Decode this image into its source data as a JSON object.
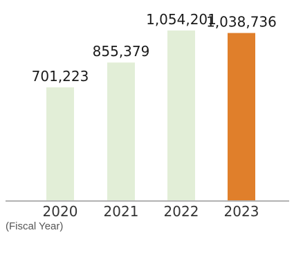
{
  "chart_data": {
    "type": "bar",
    "categories": [
      "2020",
      "2021",
      "2022",
      "2023"
    ],
    "values": [
      701223,
      855379,
      1054201,
      1038736
    ],
    "value_labels": [
      "701,223",
      "855,379",
      "1,054,201",
      "1,038,736"
    ],
    "xlabel": "(Fiscal Year)",
    "ylabel": "",
    "ylim": [
      0,
      1054201
    ],
    "grid": false,
    "legend": "none",
    "colors": {
      "bar": "#e2eed7",
      "highlight_bar": "#e07f2b",
      "axis": "#666666"
    },
    "highlight_category": "2023"
  }
}
